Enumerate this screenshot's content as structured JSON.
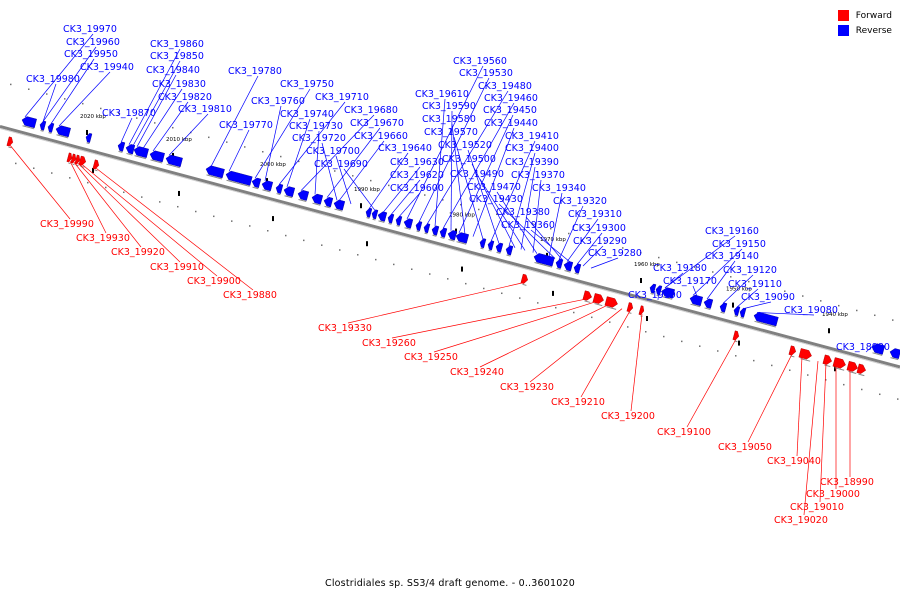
{
  "caption": "Clostridiales sp. SS3/4 draft genome. - 0..3601020",
  "legend": [
    {
      "label": "Forward",
      "color": "#ff0000"
    },
    {
      "label": "Reverse",
      "color": "#0000ff"
    }
  ],
  "colors": {
    "forward": "#ff0000",
    "reverse": "#0000ff",
    "backbone": "#808080"
  },
  "ticks": [
    "2020 kbp",
    "2010 kbp",
    "2000 kbp",
    "1990 kbp",
    "1980 kbp",
    "1970 kbp",
    "1960 kbp",
    "1950 kbp",
    "1940 kbp"
  ],
  "reverse_labels": [
    "CK3_19970",
    "CK3_19960",
    "CK3_19950",
    "CK3_19940",
    "CK3_19980",
    "CK3_19860",
    "CK3_19850",
    "CK3_19840",
    "CK3_19830",
    "CK3_19820",
    "CK3_19810",
    "CK3_19870",
    "CK3_19780",
    "CK3_19770",
    "CK3_19750",
    "CK3_19760",
    "CK3_19710",
    "CK3_19740",
    "CK3_19680",
    "CK3_19730",
    "CK3_19670",
    "CK3_19720",
    "CK3_19660",
    "CK3_19700",
    "CK3_19640",
    "CK3_19690",
    "CK3_19630",
    "CK3_19620",
    "CK3_19600",
    "CK3_19560",
    "CK3_19530",
    "CK3_19480",
    "CK3_19610",
    "CK3_19460",
    "CK3_19590",
    "CK3_19450",
    "CK3_19580",
    "CK3_19440",
    "CK3_19570",
    "CK3_19410",
    "CK3_19520",
    "CK3_19400",
    "CK3_19500",
    "CK3_19390",
    "CK3_19490",
    "CK3_19370",
    "CK3_19470",
    "CK3_19340",
    "CK3_19430",
    "CK3_19320",
    "CK3_19380",
    "CK3_19310",
    "CK3_19360",
    "CK3_19300",
    "CK3_19290",
    "CK3_19280",
    "CK3_19160",
    "CK3_19150",
    "CK3_19140",
    "CK3_19180",
    "CK3_19120",
    "CK3_19170",
    "CK3_19110",
    "CK3_19190",
    "CK3_19090",
    "CK3_19080",
    "CK3_18980"
  ],
  "forward_labels": [
    "CK3_19990",
    "CK3_19930",
    "CK3_19920",
    "CK3_19910",
    "CK3_19900",
    "CK3_19880",
    "CK3_19330",
    "CK3_19260",
    "CK3_19250",
    "CK3_19240",
    "CK3_19230",
    "CK3_19210",
    "CK3_19200",
    "CK3_19100",
    "CK3_19050",
    "CK3_19040",
    "CK3_18990",
    "CK3_19000",
    "CK3_19010",
    "CK3_19020"
  ]
}
